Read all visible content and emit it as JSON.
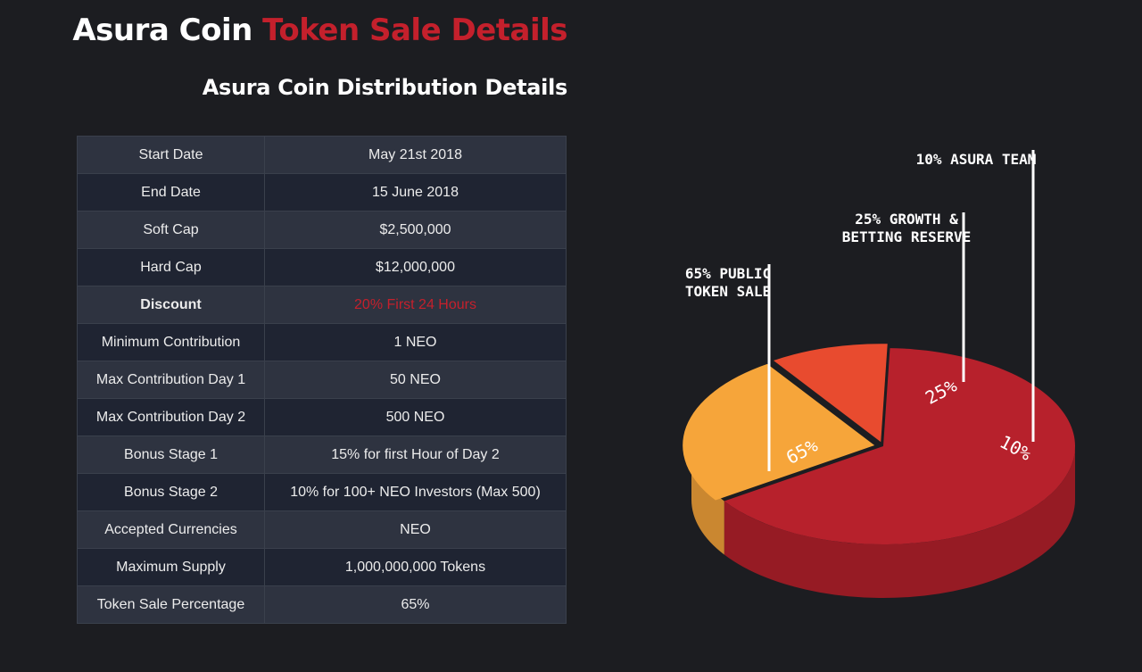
{
  "header": {
    "title_main": "Asura Coin",
    "title_accent": "Token Sale Details",
    "subtitle": "Asura Coin Distribution Details"
  },
  "table": {
    "rows": [
      {
        "label": "Start Date",
        "value": "May 21st 2018"
      },
      {
        "label": "End Date",
        "value": "15 June 2018"
      },
      {
        "label": "Soft Cap",
        "value": "$2,500,000"
      },
      {
        "label": "Hard Cap",
        "value": "$12,000,000"
      },
      {
        "label": "Discount",
        "value": "20% First 24 Hours"
      },
      {
        "label": "Minimum Contribution",
        "value": "1 NEO"
      },
      {
        "label": "Max Contribution Day 1",
        "value": "50 NEO"
      },
      {
        "label": "Max Contribution Day 2",
        "value": "500 NEO"
      },
      {
        "label": "Bonus Stage 1",
        "value": "15% for first Hour of Day 2"
      },
      {
        "label": "Bonus Stage 2",
        "value": "10% for 100+ NEO Investors (Max 500)"
      },
      {
        "label": "Accepted Currencies",
        "value": "NEO"
      },
      {
        "label": "Maximum Supply",
        "value": "1,000,000,000 Tokens"
      },
      {
        "label": "Token Sale Percentage",
        "value": "65%"
      }
    ]
  },
  "chart_data": {
    "type": "pie",
    "title": "",
    "slices": [
      {
        "value": 65,
        "label": "65%",
        "callout": [
          "65% PUBLIC",
          "TOKEN SALE"
        ],
        "color": "#b7212c"
      },
      {
        "value": 25,
        "label": "25%",
        "callout": [
          "25% GROWTH &",
          "BETTING RESERVE"
        ],
        "color": "#f6a53a"
      },
      {
        "value": 10,
        "label": "10%",
        "callout": [
          "10% ASURA TEAM"
        ],
        "color": "#e84b2f"
      }
    ]
  },
  "colors": {
    "background": "#1c1d21",
    "accent": "#c4202c",
    "row_odd": "#2e3340",
    "row_even": "#1f2432"
  }
}
